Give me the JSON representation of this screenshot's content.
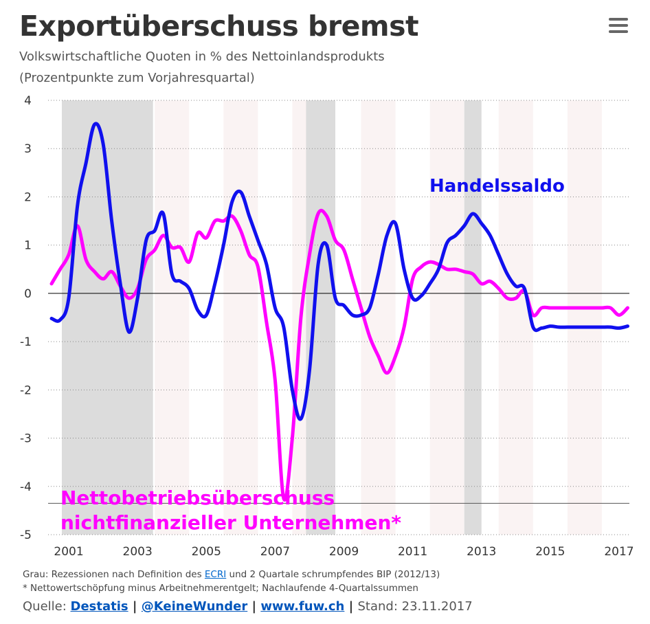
{
  "header": {
    "title": "Exportüberschuss bremst",
    "subtitle1": "Volkswirtschaftliche Quoten in % des Nettoinlandsprodukts",
    "subtitle2": "(Prozentpunkte zum Vorjahresquartal)"
  },
  "footer": {
    "note1_prefix": "Grau: Rezessionen nach Definition des ",
    "note1_link": "ECRI",
    "note1_suffix": " und 2 Quartale schrumpfendes BIP (2012/13)",
    "note2": "* Nettowertschöpfung minus Arbeitnehmerentgelt; Nachlaufende 4-Quartalssummen",
    "source_label": "Quelle: ",
    "source_destatis": "Destatis",
    "separator": " | ",
    "source_twitter": "@KeineWunder",
    "source_web": "www.fuw.ch",
    "stand": "Stand: 23.11.2017"
  },
  "colors": {
    "handelssaldo": "#1010ee",
    "nettobetrieb": "#ff00ff",
    "recession": "#dcdcdc",
    "stripe": "#faf3f3",
    "text": "#333333"
  },
  "chart_data": {
    "type": "line",
    "ylim": [
      -5,
      4
    ],
    "yticks": [
      -5,
      -4,
      -3,
      -2,
      -1,
      0,
      1,
      2,
      3,
      4
    ],
    "ytick_labels": [
      "-5",
      "-4",
      "-3",
      "-2",
      "-1",
      "0",
      "1",
      "2",
      "3",
      "4"
    ],
    "xlim": [
      2000.4,
      2017.3
    ],
    "xticks": [
      2001,
      2003,
      2005,
      2007,
      2009,
      2011,
      2013,
      2015,
      2017
    ],
    "xtick_labels": [
      "2001",
      "2003",
      "2005",
      "2007",
      "2009",
      "2011",
      "2013",
      "2015",
      "2017"
    ],
    "grid": true,
    "reference_line": -4.35,
    "recessions": [
      [
        2000.8,
        2003.45
      ],
      [
        2007.9,
        2008.75
      ],
      [
        2012.5,
        2013.0
      ]
    ],
    "series": [
      {
        "name": "Handelssaldo",
        "color": "#1010ee",
        "label_y": 2.2,
        "label_x": 2012.4,
        "x": [
          2000.5,
          2000.75,
          2001.0,
          2001.25,
          2001.5,
          2001.75,
          2002.0,
          2002.25,
          2002.5,
          2002.75,
          2003.0,
          2003.25,
          2003.5,
          2003.75,
          2004.0,
          2004.25,
          2004.5,
          2004.75,
          2005.0,
          2005.25,
          2005.5,
          2005.75,
          2006.0,
          2006.25,
          2006.5,
          2006.75,
          2007.0,
          2007.25,
          2007.5,
          2007.75,
          2008.0,
          2008.25,
          2008.5,
          2008.75,
          2009.0,
          2009.25,
          2009.5,
          2009.75,
          2010.0,
          2010.25,
          2010.5,
          2010.75,
          2011.0,
          2011.25,
          2011.5,
          2011.75,
          2012.0,
          2012.25,
          2012.5,
          2012.75,
          2013.0,
          2013.25,
          2013.5,
          2013.75,
          2014.0,
          2014.25,
          2014.5,
          2014.75,
          2015.0,
          2015.25,
          2015.5,
          2015.75,
          2016.0,
          2016.25,
          2016.5,
          2016.75,
          2017.0,
          2017.25
        ],
        "values": [
          -0.52,
          -0.55,
          -0.1,
          1.8,
          2.7,
          3.5,
          3.1,
          1.5,
          0.2,
          -0.8,
          -0.1,
          1.1,
          1.3,
          1.65,
          0.4,
          0.25,
          0.1,
          -0.35,
          -0.45,
          0.2,
          1.0,
          1.9,
          2.1,
          1.6,
          1.1,
          0.6,
          -0.3,
          -0.7,
          -2.0,
          -2.6,
          -1.6,
          0.6,
          1.0,
          -0.1,
          -0.25,
          -0.45,
          -0.45,
          -0.3,
          0.4,
          1.2,
          1.45,
          0.5,
          -0.1,
          -0.05,
          0.2,
          0.5,
          1.05,
          1.2,
          1.4,
          1.65,
          1.45,
          1.2,
          0.8,
          0.4,
          0.15,
          0.1,
          -0.7,
          -0.72,
          -0.68,
          -0.7,
          -0.7,
          -0.7,
          -0.7,
          -0.7,
          -0.7,
          -0.7,
          -0.72,
          -0.68
        ]
      },
      {
        "name": "Nettobetriebsüberschuss nichtfinanzieller Unternehmen*",
        "color": "#ff00ff",
        "x": [
          2000.5,
          2000.75,
          2001.0,
          2001.25,
          2001.5,
          2001.75,
          2002.0,
          2002.25,
          2002.5,
          2002.75,
          2003.0,
          2003.25,
          2003.5,
          2003.75,
          2004.0,
          2004.25,
          2004.5,
          2004.75,
          2005.0,
          2005.25,
          2005.5,
          2005.75,
          2006.0,
          2006.25,
          2006.5,
          2006.75,
          2007.0,
          2007.25,
          2007.5,
          2007.75,
          2008.0,
          2008.25,
          2008.5,
          2008.75,
          2009.0,
          2009.25,
          2009.5,
          2009.75,
          2010.0,
          2010.25,
          2010.5,
          2010.75,
          2011.0,
          2011.25,
          2011.5,
          2011.75,
          2012.0,
          2012.25,
          2012.5,
          2012.75,
          2013.0,
          2013.25,
          2013.5,
          2013.75,
          2014.0,
          2014.25,
          2014.5,
          2014.75,
          2015.0,
          2015.25,
          2015.5,
          2015.75,
          2016.0,
          2016.25,
          2016.5,
          2016.75,
          2017.0,
          2017.25
        ],
        "values": [
          0.2,
          0.5,
          0.8,
          1.4,
          0.7,
          0.45,
          0.3,
          0.45,
          0.15,
          -0.1,
          0.1,
          0.7,
          0.9,
          1.2,
          0.95,
          0.95,
          0.65,
          1.25,
          1.15,
          1.5,
          1.5,
          1.6,
          1.3,
          0.8,
          0.55,
          -0.6,
          -1.8,
          -4.25,
          -3.0,
          -0.5,
          0.8,
          1.65,
          1.6,
          1.1,
          0.9,
          0.3,
          -0.3,
          -0.9,
          -1.3,
          -1.65,
          -1.3,
          -0.7,
          0.3,
          0.55,
          0.65,
          0.6,
          0.5,
          0.5,
          0.45,
          0.4,
          0.2,
          0.25,
          0.1,
          -0.1,
          -0.1,
          0.05,
          -0.45,
          -0.3,
          -0.3,
          -0.3,
          -0.3,
          -0.3,
          -0.3,
          -0.3,
          -0.3,
          -0.3,
          -0.45,
          -0.3
        ]
      }
    ]
  }
}
